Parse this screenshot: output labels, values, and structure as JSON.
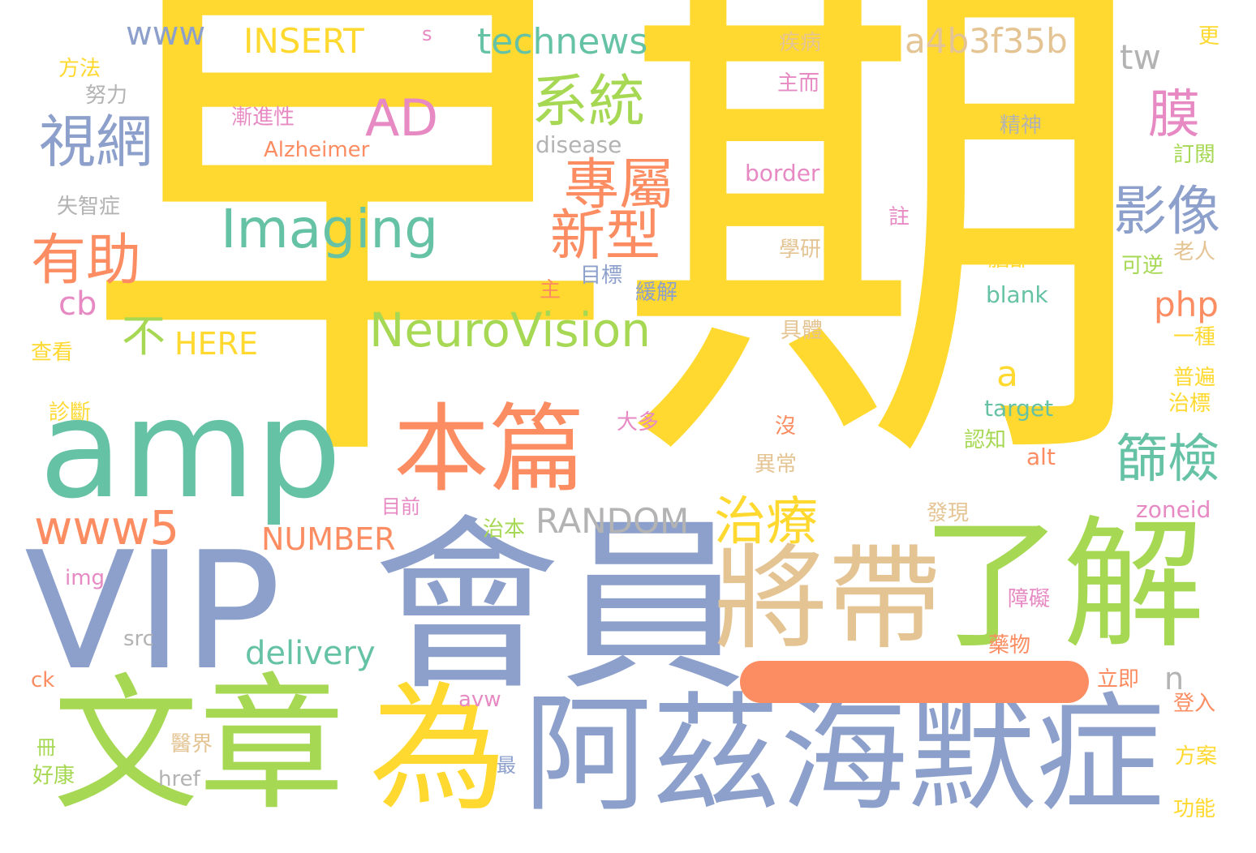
{
  "palette": {
    "yellow": "#FFD92F",
    "green": "#A6D854",
    "blue": "#8DA0CB",
    "teal": "#66C2A5",
    "orange": "#FC8D62",
    "pink": "#E78AC3",
    "tan": "#E5C494",
    "gray": "#B3B3B3"
  },
  "words": {
    "zaoqi": "早期",
    "vip": "VIP",
    "huiyuan": "會員",
    "wenzhang": "文章",
    "wei": "為",
    "azhm": "阿茲海默症",
    "jiangdai": "將帶",
    "liaojie": "了解",
    "amp": "amp",
    "benpian": "本篇",
    "imaging": "Imaging",
    "neurovision": "NeuroVision",
    "shiwang": "視網",
    "youzhu": "有助",
    "xitong": "系統",
    "zhuanshu": "專屬",
    "xinxing": "新型",
    "ad": "AD",
    "mo": "膜",
    "yingxiang": "影像",
    "shaijian": "篩檢",
    "zhiliao": "治療",
    "www5": "www5",
    "www": "www",
    "insert": "INSERT",
    "technews": "technews",
    "hash": "a4b3f35b",
    "tw": "tw",
    "s": "s",
    "cb": "cb",
    "bu": "不",
    "here": "HERE",
    "php": "php",
    "a": "a",
    "random": "RANDOM",
    "number": "NUMBER",
    "delivery": "delivery",
    "n": "n",
    "disease": "disease",
    "alzheimer": "Alzheimer",
    "jianjinxing": "漸進性",
    "border": "border",
    "blank": "blank",
    "target": "target",
    "alt": "alt",
    "zoneid": "zoneid",
    "img": "img",
    "src": "src",
    "href": "href",
    "avw": "avw",
    "ck": "ck",
    "fangfa": "方法",
    "nuli": "努力",
    "shizhizheng": "失智症",
    "chakan": "查看",
    "zhenduan": "診斷",
    "jibing": "疾病",
    "zhuer": "主而",
    "jingshen": "精神",
    "dingyue": "訂閱",
    "geng": "更",
    "zhu_note": "註",
    "xueyan": "學研",
    "naobu": "腦部",
    "laoren": "老人",
    "kenie": "可逆",
    "mubiao": "目標",
    "zhu": "主",
    "huanjie": "緩解",
    "juti": "具體",
    "yizhong": "一種",
    "pubian": "普遍",
    "zhibiao": "治標",
    "daduo": "大多",
    "mei": "沒",
    "renzhi": "認知",
    "yichang": "異常",
    "muqian": "目前",
    "zhiben": "治本",
    "faxian": "發現",
    "zhangai": "障礙",
    "yaowu": "藥物",
    "liji": "立即",
    "dengru": "登入",
    "yijie": "醫界",
    "zui": "最",
    "ce": "冊",
    "haokang": "好康",
    "fangan": "方案",
    "gongneng": "功能"
  }
}
